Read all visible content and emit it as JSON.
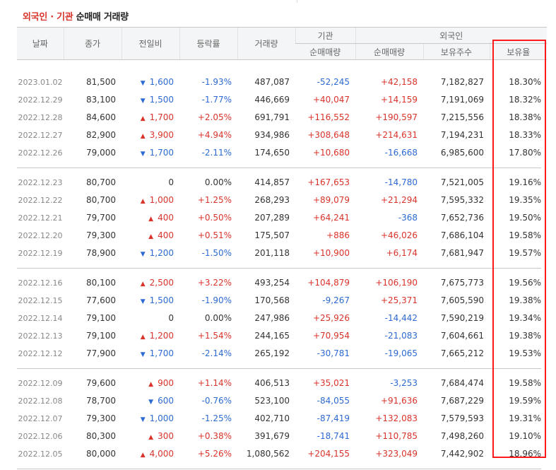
{
  "title": {
    "part1": "외국인 · 기관",
    "part2": " 순매매 거래량"
  },
  "headers": {
    "date": "날짜",
    "close": "종가",
    "change": "전일비",
    "rate": "등락률",
    "volume": "거래량",
    "inst_group": "기관",
    "foreign_group": "외국인",
    "inst_net": "순매매량",
    "foreign_net": "순매매량",
    "shares_held": "보유주수",
    "ownership": "보유율"
  },
  "colors": {
    "up": "#d9342b",
    "down": "#2d6ad2",
    "highlight": "#ff1b1b"
  },
  "groups": [
    [
      {
        "date": "2023.01.02",
        "close": "81,500",
        "dir": "down",
        "change": "1,600",
        "rate": "-1.93%",
        "volume": "487,087",
        "inst": "-52,245",
        "foreign": "+42,158",
        "held": "7,182,827",
        "pct": "18.30%"
      },
      {
        "date": "2022.12.29",
        "close": "83,100",
        "dir": "down",
        "change": "1,500",
        "rate": "-1.77%",
        "volume": "446,669",
        "inst": "+40,047",
        "foreign": "+14,159",
        "held": "7,191,069",
        "pct": "18.32%"
      },
      {
        "date": "2022.12.28",
        "close": "84,600",
        "dir": "up",
        "change": "1,700",
        "rate": "+2.05%",
        "volume": "691,791",
        "inst": "+116,552",
        "foreign": "+190,597",
        "held": "7,215,556",
        "pct": "18.38%"
      },
      {
        "date": "2022.12.27",
        "close": "82,900",
        "dir": "up",
        "change": "3,900",
        "rate": "+4.94%",
        "volume": "934,986",
        "inst": "+308,648",
        "foreign": "+214,631",
        "held": "7,194,231",
        "pct": "18.33%"
      },
      {
        "date": "2022.12.26",
        "close": "79,000",
        "dir": "down",
        "change": "1,700",
        "rate": "-2.11%",
        "volume": "174,650",
        "inst": "+10,680",
        "foreign": "-16,668",
        "held": "6,985,600",
        "pct": "17.80%"
      }
    ],
    [
      {
        "date": "2022.12.23",
        "close": "80,700",
        "dir": "none",
        "change": "0",
        "rate": "0.00%",
        "volume": "414,857",
        "inst": "+167,653",
        "foreign": "-14,780",
        "held": "7,521,005",
        "pct": "19.16%"
      },
      {
        "date": "2022.12.22",
        "close": "80,700",
        "dir": "up",
        "change": "1,000",
        "rate": "+1.25%",
        "volume": "268,293",
        "inst": "+89,079",
        "foreign": "+21,294",
        "held": "7,595,332",
        "pct": "19.35%"
      },
      {
        "date": "2022.12.21",
        "close": "79,700",
        "dir": "up",
        "change": "400",
        "rate": "+0.50%",
        "volume": "207,289",
        "inst": "+64,241",
        "foreign": "-368",
        "held": "7,652,736",
        "pct": "19.50%"
      },
      {
        "date": "2022.12.20",
        "close": "79,300",
        "dir": "up",
        "change": "400",
        "rate": "+0.51%",
        "volume": "175,507",
        "inst": "+886",
        "foreign": "+46,026",
        "held": "7,686,104",
        "pct": "19.58%"
      },
      {
        "date": "2022.12.19",
        "close": "78,900",
        "dir": "down",
        "change": "1,200",
        "rate": "-1.50%",
        "volume": "201,118",
        "inst": "+10,900",
        "foreign": "+6,174",
        "held": "7,681,947",
        "pct": "19.57%"
      }
    ],
    [
      {
        "date": "2022.12.16",
        "close": "80,100",
        "dir": "up",
        "change": "2,500",
        "rate": "+3.22%",
        "volume": "493,254",
        "inst": "+104,879",
        "foreign": "+106,190",
        "held": "7,675,773",
        "pct": "19.56%"
      },
      {
        "date": "2022.12.15",
        "close": "77,600",
        "dir": "down",
        "change": "1,500",
        "rate": "-1.90%",
        "volume": "170,568",
        "inst": "-9,267",
        "foreign": "+25,371",
        "held": "7,605,590",
        "pct": "19.38%"
      },
      {
        "date": "2022.12.14",
        "close": "79,100",
        "dir": "none",
        "change": "0",
        "rate": "0.00%",
        "volume": "247,986",
        "inst": "+25,926",
        "foreign": "-14,442",
        "held": "7,590,219",
        "pct": "19.34%"
      },
      {
        "date": "2022.12.13",
        "close": "79,100",
        "dir": "up",
        "change": "1,200",
        "rate": "+1.54%",
        "volume": "244,165",
        "inst": "+70,954",
        "foreign": "-21,083",
        "held": "7,604,661",
        "pct": "19.38%"
      },
      {
        "date": "2022.12.12",
        "close": "77,900",
        "dir": "down",
        "change": "1,700",
        "rate": "-2.14%",
        "volume": "265,192",
        "inst": "-30,781",
        "foreign": "-19,065",
        "held": "7,665,212",
        "pct": "19.53%"
      }
    ],
    [
      {
        "date": "2022.12.09",
        "close": "79,600",
        "dir": "up",
        "change": "900",
        "rate": "+1.14%",
        "volume": "406,513",
        "inst": "+35,021",
        "foreign": "-3,253",
        "held": "7,684,474",
        "pct": "19.58%"
      },
      {
        "date": "2022.12.08",
        "close": "78,700",
        "dir": "down",
        "change": "600",
        "rate": "-0.76%",
        "volume": "523,100",
        "inst": "-84,055",
        "foreign": "+91,636",
        "held": "7,687,229",
        "pct": "19.59%"
      },
      {
        "date": "2022.12.07",
        "close": "79,300",
        "dir": "down",
        "change": "1,000",
        "rate": "-1.25%",
        "volume": "402,710",
        "inst": "-87,419",
        "foreign": "+132,083",
        "held": "7,579,593",
        "pct": "19.31%"
      },
      {
        "date": "2022.12.06",
        "close": "80,300",
        "dir": "up",
        "change": "300",
        "rate": "+0.38%",
        "volume": "391,679",
        "inst": "-18,741",
        "foreign": "+110,785",
        "held": "7,498,260",
        "pct": "19.10%"
      },
      {
        "date": "2022.12.05",
        "close": "80,000",
        "dir": "up",
        "change": "4,000",
        "rate": "+5.26%",
        "volume": "1,080,562",
        "inst": "+204,155",
        "foreign": "+323,049",
        "held": "7,442,902",
        "pct": "18.96%"
      }
    ]
  ]
}
